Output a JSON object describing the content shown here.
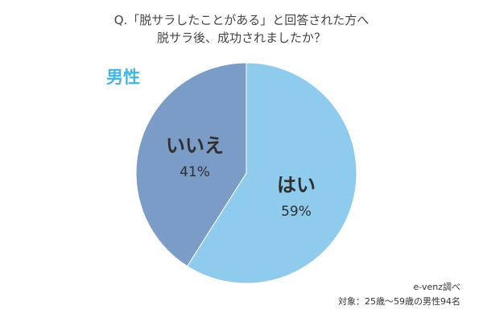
{
  "header": {
    "question_line1": "Q.「脱サラしたことがある」と回答された方へ",
    "question_line2": "脱サラ後、成功されましたか？"
  },
  "subject_label": "男性",
  "footer": {
    "source": "e-venz調べ",
    "target": "対象：25歳〜59歳の男性94名"
  },
  "colors": {
    "yes": "#8ecbec",
    "no": "#7a9cc6",
    "subject_label": "#3fb6e6",
    "slice_border": "#ffffff"
  },
  "chart_data": {
    "type": "pie",
    "slices": [
      {
        "label": "はい",
        "value": 59,
        "value_label": "59%"
      },
      {
        "label": "いいえ",
        "value": 41,
        "value_label": "41%"
      }
    ]
  }
}
